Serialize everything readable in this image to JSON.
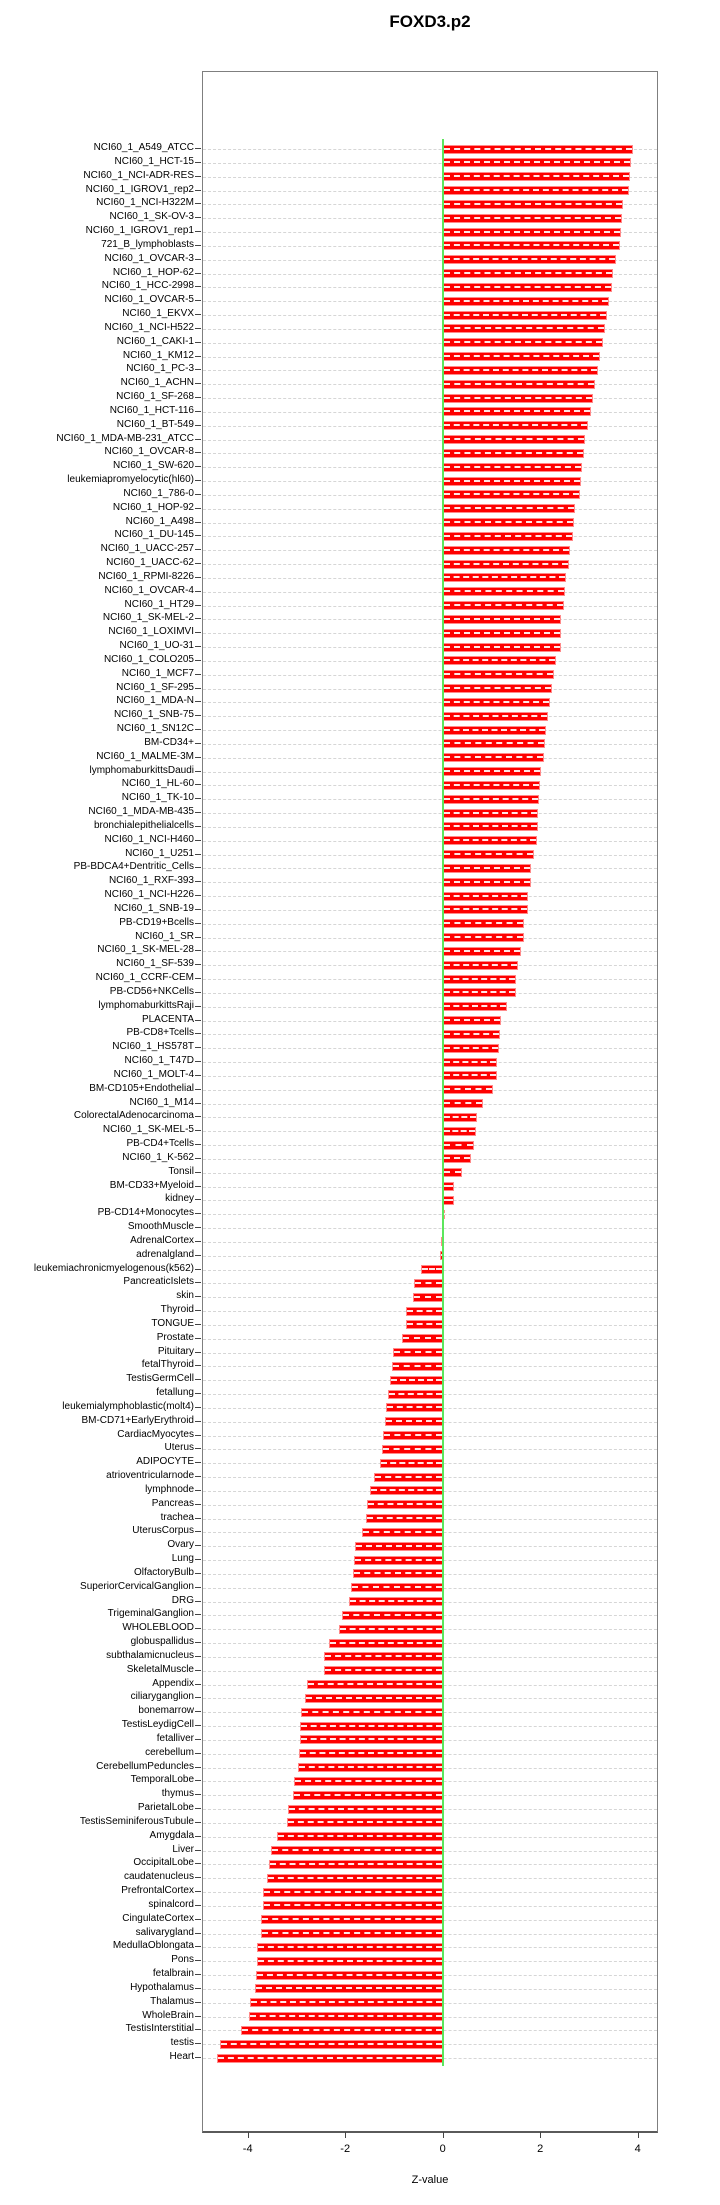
{
  "title": "FOXD3.p2",
  "axis": {
    "xlabel": "Z-value"
  },
  "colors": {
    "bar": "#fe0000",
    "bar_edge": "#ff8a8a",
    "zero_line": "#5ce65c",
    "grid": "#d6d6d6",
    "box_border": "#7f7f7f"
  },
  "chart_data": {
    "type": "bar",
    "orientation": "horizontal",
    "title": "FOXD3.p2",
    "xlabel": "Z-value",
    "xlim": [
      -4.95,
      4.4
    ],
    "x_ticks": [
      -4,
      -2,
      0,
      2,
      4
    ],
    "grid": "dashed-horizontal-per-row",
    "zero_reference_line": 0,
    "categories": [
      "NCI60_1_A549_ATCC",
      "NCI60_1_HCT-15",
      "NCI60_1_NCI-ADR-RES",
      "NCI60_1_IGROV1_rep2",
      "NCI60_1_NCI-H322M",
      "NCI60_1_SK-OV-3",
      "NCI60_1_IGROV1_rep1",
      "721_B_lymphoblasts",
      "NCI60_1_OVCAR-3",
      "NCI60_1_HOP-62",
      "NCI60_1_HCC-2998",
      "NCI60_1_OVCAR-5",
      "NCI60_1_EKVX",
      "NCI60_1_NCI-H522",
      "NCI60_1_CAKI-1",
      "NCI60_1_KM12",
      "NCI60_1_PC-3",
      "NCI60_1_ACHN",
      "NCI60_1_SF-268",
      "NCI60_1_HCT-116",
      "NCI60_1_BT-549",
      "NCI60_1_MDA-MB-231_ATCC",
      "NCI60_1_OVCAR-8",
      "NCI60_1_SW-620",
      "leukemiapromyelocytic(hl60)",
      "NCI60_1_786-0",
      "NCI60_1_HOP-92",
      "NCI60_1_A498",
      "NCI60_1_DU-145",
      "NCI60_1_UACC-257",
      "NCI60_1_UACC-62",
      "NCI60_1_RPMI-8226",
      "NCI60_1_OVCAR-4",
      "NCI60_1_HT29",
      "NCI60_1_SK-MEL-2",
      "NCI60_1_LOXIMVI",
      "NCI60_1_UO-31",
      "NCI60_1_COLO205",
      "NCI60_1_MCF7",
      "NCI60_1_SF-295",
      "NCI60_1_MDA-N",
      "NCI60_1_SNB-75",
      "NCI60_1_SN12C",
      "BM-CD34+",
      "NCI60_1_MALME-3M",
      "lymphomaburkittsDaudi",
      "NCI60_1_HL-60",
      "NCI60_1_TK-10",
      "NCI60_1_MDA-MB-435",
      "bronchialepithelialcells",
      "NCI60_1_NCI-H460",
      "NCI60_1_U251",
      "PB-BDCA4+Dentritic_Cells",
      "NCI60_1_RXF-393",
      "NCI60_1_NCI-H226",
      "NCI60_1_SNB-19",
      "PB-CD19+Bcells",
      "NCI60_1_SR",
      "NCI60_1_SK-MEL-28",
      "NCI60_1_SF-539",
      "NCI60_1_CCRF-CEM",
      "PB-CD56+NKCells",
      "lymphomaburkittsRaji",
      "PLACENTA",
      "PB-CD8+Tcells",
      "NCI60_1_HS578T",
      "NCI60_1_T47D",
      "NCI60_1_MOLT-4",
      "BM-CD105+Endothelial",
      "NCI60_1_M14",
      "ColorectalAdenocarcinoma",
      "NCI60_1_SK-MEL-5",
      "PB-CD4+Tcells",
      "NCI60_1_K-562",
      "Tonsil",
      "BM-CD33+Myeloid",
      "kidney",
      "PB-CD14+Monocytes",
      "SmoothMuscle",
      "AdrenalCortex",
      "adrenalgland",
      "leukemiachronicmyelogenous(k562)",
      "PancreaticIslets",
      "skin",
      "Thyroid",
      "TONGUE",
      "Prostate",
      "Pituitary",
      "fetalThyroid",
      "TestisGermCell",
      "fetallung",
      "leukemialymphoblastic(molt4)",
      "BM-CD71+EarlyErythroid",
      "CardiacMyocytes",
      "Uterus",
      "ADIPOCYTE",
      "atrioventricularnode",
      "lymphnode",
      "Pancreas",
      "trachea",
      "UterusCorpus",
      "Ovary",
      "Lung",
      "OlfactoryBulb",
      "SuperiorCervicalGanglion",
      "DRG",
      "TrigeminalGanglion",
      "WHOLEBLOOD",
      "globuspallidus",
      "subthalamicnucleus",
      "SkeletalMuscle",
      "Appendix",
      "ciliaryganglion",
      "bonemarrow",
      "TestisLeydigCell",
      "fetalliver",
      "cerebellum",
      "CerebellumPeduncles",
      "TemporalLobe",
      "thymus",
      "ParietalLobe",
      "TestisSeminiferousTubule",
      "Amygdala",
      "Liver",
      "OccipitalLobe",
      "caudatenucleus",
      "PrefrontalCortex",
      "spinalcord",
      "CingulateCortex",
      "salivarygland",
      "MedullaOblongata",
      "Pons",
      "fetalbrain",
      "Hypothalamus",
      "Thalamus",
      "WholeBrain",
      "TestisInterstitial",
      "testis",
      "Heart"
    ],
    "values": [
      3.91,
      3.86,
      3.84,
      3.83,
      3.7,
      3.68,
      3.66,
      3.64,
      3.55,
      3.49,
      3.47,
      3.42,
      3.38,
      3.33,
      3.28,
      3.23,
      3.18,
      3.13,
      3.09,
      3.04,
      2.99,
      2.92,
      2.9,
      2.85,
      2.83,
      2.81,
      2.72,
      2.7,
      2.68,
      2.61,
      2.59,
      2.54,
      2.52,
      2.49,
      2.43,
      2.43,
      2.42,
      2.32,
      2.28,
      2.24,
      2.21,
      2.17,
      2.13,
      2.1,
      2.07,
      2.01,
      2.0,
      1.97,
      1.96,
      1.95,
      1.94,
      1.87,
      1.82,
      1.82,
      1.76,
      1.75,
      1.67,
      1.66,
      1.61,
      1.55,
      1.51,
      1.51,
      1.32,
      1.2,
      1.17,
      1.15,
      1.12,
      1.12,
      1.03,
      0.83,
      0.7,
      0.69,
      0.65,
      0.58,
      0.4,
      0.24,
      0.23,
      0.05,
      -0.01,
      -0.04,
      -0.06,
      -0.45,
      -0.58,
      -0.62,
      -0.76,
      -0.76,
      -0.83,
      -1.02,
      -1.05,
      -1.09,
      -1.12,
      -1.16,
      -1.19,
      -1.23,
      -1.25,
      -1.28,
      -1.4,
      -1.5,
      -1.55,
      -1.57,
      -1.66,
      -1.79,
      -1.82,
      -1.85,
      -1.89,
      -1.92,
      -2.06,
      -2.13,
      -2.33,
      -2.43,
      -2.44,
      -2.78,
      -2.82,
      -2.9,
      -2.92,
      -2.92,
      -2.94,
      -2.97,
      -3.05,
      -3.08,
      -3.18,
      -3.19,
      -3.4,
      -3.52,
      -3.57,
      -3.6,
      -3.69,
      -3.69,
      -3.72,
      -3.72,
      -3.8,
      -3.82,
      -3.84,
      -3.86,
      -3.96,
      -3.98,
      -4.13,
      -4.56,
      -4.64
    ]
  }
}
